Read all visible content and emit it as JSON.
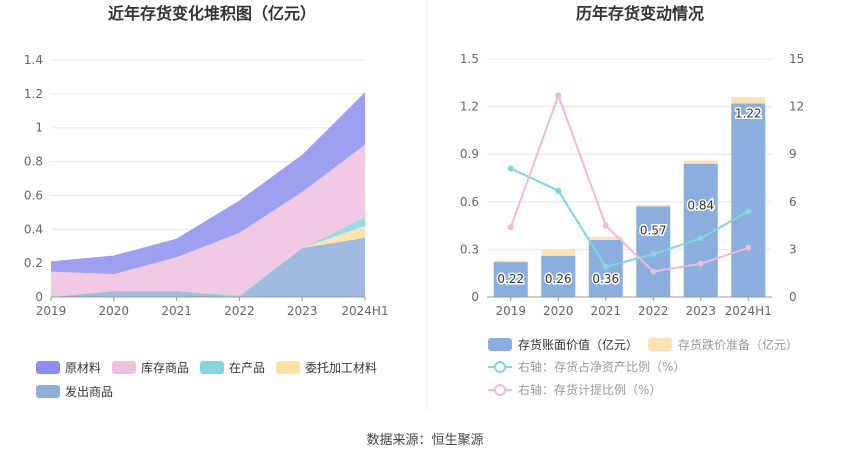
{
  "source_text": "数据来源：恒生聚源",
  "chart_data": [
    {
      "type": "area",
      "title": "近年存货变化堆积图（亿元）",
      "categories": [
        "2019",
        "2020",
        "2021",
        "2022",
        "2023",
        "2024H1"
      ],
      "ylim": [
        0,
        1.4
      ],
      "yticks": [
        "0",
        "0.2",
        "0.4",
        "0.6",
        "0.8",
        "1",
        "1.2",
        "1.4"
      ],
      "grid": true,
      "legend_position": "bottom",
      "series": [
        {
          "name": "发出商品",
          "color": "#8fafd9",
          "values": [
            0.0,
            0.035,
            0.035,
            0.0,
            0.29,
            0.35
          ]
        },
        {
          "name": "委托加工材料",
          "color": "#fde1a4",
          "values": [
            0.0,
            0.0,
            0.0,
            0.0,
            0.0,
            0.07
          ]
        },
        {
          "name": "在产品",
          "color": "#85d5de",
          "values": [
            0.0,
            0.0,
            0.0,
            0.01,
            0.0,
            0.05
          ]
        },
        {
          "name": "库存商品",
          "color": "#eec0df",
          "values": [
            0.15,
            0.1,
            0.2,
            0.37,
            0.33,
            0.43
          ]
        },
        {
          "name": "原材料",
          "color": "#8e8ef0",
          "values": [
            0.06,
            0.11,
            0.11,
            0.19,
            0.22,
            0.31
          ]
        }
      ],
      "legend_order": [
        "原材料",
        "库存商品",
        "在产品",
        "委托加工材料",
        "发出商品"
      ]
    },
    {
      "type": "bar",
      "title": "历年存货变动情况",
      "categories": [
        "2019",
        "2020",
        "2021",
        "2022",
        "2023",
        "2024H1"
      ],
      "ylim_left": [
        0,
        1.5
      ],
      "ylim_right": [
        0,
        15
      ],
      "yticks_left": [
        "0",
        "0.3",
        "0.6",
        "0.9",
        "1.2",
        "1.5"
      ],
      "yticks_right": [
        "0",
        "3",
        "6",
        "9",
        "12",
        "15"
      ],
      "grid": true,
      "legend_position": "bottom",
      "bars": [
        {
          "name": "存货账面价值（亿元）",
          "color": "#8aaede",
          "values": [
            0.22,
            0.26,
            0.36,
            0.57,
            0.84,
            1.22
          ],
          "labels": [
            "0.22",
            "0.26",
            "0.36",
            "0.57",
            "0.84",
            "1.22"
          ]
        },
        {
          "name": "存货跌价准备（亿元）",
          "color": "#fde3b2",
          "values": [
            0.01,
            0.04,
            0.02,
            0.01,
            0.02,
            0.04
          ]
        }
      ],
      "lines": [
        {
          "name": "右轴：存货占净资产比例（%）",
          "color": "#7fd6dc",
          "values": [
            8.1,
            6.7,
            1.9,
            2.7,
            3.7,
            5.4
          ]
        },
        {
          "name": "右轴：存货计提比例（%）",
          "color": "#efb8dc",
          "values": [
            4.4,
            12.7,
            4.5,
            1.6,
            2.1,
            3.1
          ]
        }
      ]
    }
  ]
}
